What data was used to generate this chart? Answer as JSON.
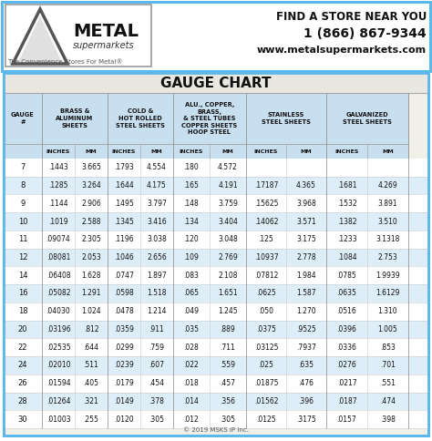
{
  "title": "GAUGE CHART",
  "header_line1": "FIND A STORE NEAR YOU",
  "header_line2": "1 (866) 867-9344",
  "header_line3": "www.metalsupermarkets.com",
  "tagline": "The Convenience Stores For Metal®",
  "copyright": "© 2019 MSKS IP Inc.",
  "gauges": [
    7,
    8,
    9,
    10,
    11,
    12,
    14,
    16,
    18,
    20,
    22,
    24,
    26,
    28,
    30
  ],
  "brass_aluminum": [
    [
      ".1443",
      "3.665"
    ],
    [
      ".1285",
      "3.264"
    ],
    [
      ".1144",
      "2.906"
    ],
    [
      ".1019",
      "2.588"
    ],
    [
      ".09074",
      "2.305"
    ],
    [
      ".08081",
      "2.053"
    ],
    [
      ".06408",
      "1.628"
    ],
    [
      ".05082",
      "1.291"
    ],
    [
      ".04030",
      "1.024"
    ],
    [
      ".03196",
      ".812"
    ],
    [
      ".02535",
      ".644"
    ],
    [
      ".02010",
      ".511"
    ],
    [
      ".01594",
      ".405"
    ],
    [
      ".01264",
      ".321"
    ],
    [
      ".01003",
      ".255"
    ]
  ],
  "cold_hot_rolled": [
    [
      ".1793",
      "4.554"
    ],
    [
      ".1644",
      "4.175"
    ],
    [
      ".1495",
      "3.797"
    ],
    [
      ".1345",
      "3.416"
    ],
    [
      ".1196",
      "3.038"
    ],
    [
      ".1046",
      "2.656"
    ],
    [
      ".0747",
      "1.897"
    ],
    [
      ".0598",
      "1.518"
    ],
    [
      ".0478",
      "1.214"
    ],
    [
      ".0359",
      ".911"
    ],
    [
      ".0299",
      ".759"
    ],
    [
      ".0239",
      ".607"
    ],
    [
      ".0179",
      ".454"
    ],
    [
      ".0149",
      ".378"
    ],
    [
      ".0120",
      ".305"
    ]
  ],
  "alu_copper": [
    [
      ".180",
      "4.572"
    ],
    [
      ".165",
      "4.191"
    ],
    [
      ".148",
      "3.759"
    ],
    [
      ".134",
      "3.404"
    ],
    [
      ".120",
      "3.048"
    ],
    [
      ".109",
      "2.769"
    ],
    [
      ".083",
      "2.108"
    ],
    [
      ".065",
      "1.651"
    ],
    [
      ".049",
      "1.245"
    ],
    [
      ".035",
      ".889"
    ],
    [
      ".028",
      ".711"
    ],
    [
      ".022",
      ".559"
    ],
    [
      ".018",
      ".457"
    ],
    [
      ".014",
      ".356"
    ],
    [
      ".012",
      ".305"
    ]
  ],
  "stainless": [
    [
      "",
      ""
    ],
    [
      ".17187",
      "4.365"
    ],
    [
      ".15625",
      "3.968"
    ],
    [
      ".14062",
      "3.571"
    ],
    [
      ".125",
      "3.175"
    ],
    [
      ".10937",
      "2.778"
    ],
    [
      ".07812",
      "1.984"
    ],
    [
      ".0625",
      "1.587"
    ],
    [
      ".050",
      "1.270"
    ],
    [
      ".0375",
      ".9525"
    ],
    [
      ".03125",
      ".7937"
    ],
    [
      ".025",
      ".635"
    ],
    [
      ".01875",
      ".476"
    ],
    [
      ".01562",
      ".396"
    ],
    [
      ".0125",
      ".3175"
    ]
  ],
  "galvanized": [
    [
      "",
      ""
    ],
    [
      ".1681",
      "4.269"
    ],
    [
      ".1532",
      "3.891"
    ],
    [
      ".1382",
      "3.510"
    ],
    [
      ".1233",
      "3.1318"
    ],
    [
      ".1084",
      "2.753"
    ],
    [
      ".0785",
      "1.9939"
    ],
    [
      ".0635",
      "1.6129"
    ],
    [
      ".0516",
      "1.310"
    ],
    [
      ".0396",
      "1.005"
    ],
    [
      ".0336",
      ".853"
    ],
    [
      ".0276",
      ".701"
    ],
    [
      ".0217",
      ".551"
    ],
    [
      ".0187",
      ".474"
    ],
    [
      ".0157",
      ".398"
    ]
  ],
  "outer_border_color": "#5bb8e8",
  "inner_border_color": "#5bb8e8",
  "header_bg": "#ffffff",
  "table_outer_bg": "#e8e8e0",
  "col_header_bg": "#c8dff0",
  "subheader_bg": "#c8dff0",
  "row_even_bg": "#ffffff",
  "row_odd_bg": "#ddeef8",
  "text_color": "#111111",
  "logo_border": "#888888",
  "logo_bg": "#ffffff",
  "metal_blue": "#1a5ea8"
}
